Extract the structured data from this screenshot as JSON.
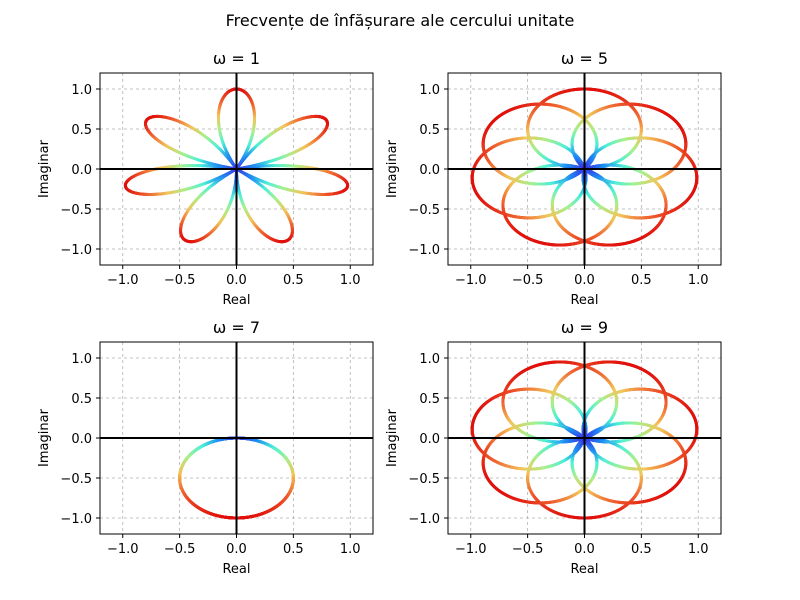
{
  "chart_data": {
    "type": "line",
    "suptitle": "Frecvențe de înfășurare ale cercului unitate",
    "description_of_curves": "Polar curves r(θ) = |cos(k·θ/2)|-like winding patterns colored by distance from origin with a rainbow (jet) colormap: blue near center, red at the rim.",
    "colormap": [
      "#3a2ee6",
      "#1f8cf2",
      "#4cf0d8",
      "#a8f08c",
      "#f2c45a",
      "#f06430",
      "#e0100c"
    ],
    "panels": [
      {
        "title": "ω = 1",
        "omega": 1,
        "curve": "rose",
        "petals": 7,
        "petal_angle_offset_deg": 90,
        "xlabel": "Real",
        "ylabel": "Imaginar",
        "xlim": [
          -1.2,
          1.2
        ],
        "ylim": [
          -1.2,
          1.2
        ],
        "xticks": [
          "−1.0",
          "−0.5",
          "0.0",
          "0.5",
          "1.0"
        ],
        "yticks": [
          "−1.0",
          "−0.5",
          "0.0",
          "0.5",
          "1.0"
        ],
        "grid": true
      },
      {
        "title": "ω = 5",
        "omega": 5,
        "curve": "circles",
        "count": 7,
        "circle_radius": 0.5,
        "first_circle_angle_deg": 90,
        "xlabel": "Real",
        "ylabel": "Imaginar",
        "xlim": [
          -1.2,
          1.2
        ],
        "ylim": [
          -1.2,
          1.2
        ],
        "xticks": [
          "−1.0",
          "−0.5",
          "0.0",
          "0.5",
          "1.0"
        ],
        "yticks": [
          "−1.0",
          "−0.5",
          "0.0",
          "0.5",
          "1.0"
        ],
        "grid": true
      },
      {
        "title": "ω = 7",
        "omega": 7,
        "curve": "circles",
        "count": 1,
        "circle_radius": 0.5,
        "first_circle_angle_deg": 270,
        "xlabel": "Real",
        "ylabel": "Imaginar",
        "xlim": [
          -1.2,
          1.2
        ],
        "ylim": [
          -1.2,
          1.2
        ],
        "xticks": [
          "−1.0",
          "−0.5",
          "0.0",
          "0.5",
          "1.0"
        ],
        "yticks": [
          "−1.0",
          "−0.5",
          "0.0",
          "0.5",
          "1.0"
        ],
        "grid": true
      },
      {
        "title": "ω = 9",
        "omega": 9,
        "curve": "circles",
        "count": 7,
        "circle_radius": 0.5,
        "first_circle_angle_deg": 270,
        "xlabel": "Real",
        "ylabel": "Imaginar",
        "xlim": [
          -1.2,
          1.2
        ],
        "ylim": [
          -1.2,
          1.2
        ],
        "xticks": [
          "−1.0",
          "−0.5",
          "0.0",
          "0.5",
          "1.0"
        ],
        "yticks": [
          "−1.0",
          "−0.5",
          "0.0",
          "0.5",
          "1.0"
        ],
        "grid": true
      }
    ]
  }
}
